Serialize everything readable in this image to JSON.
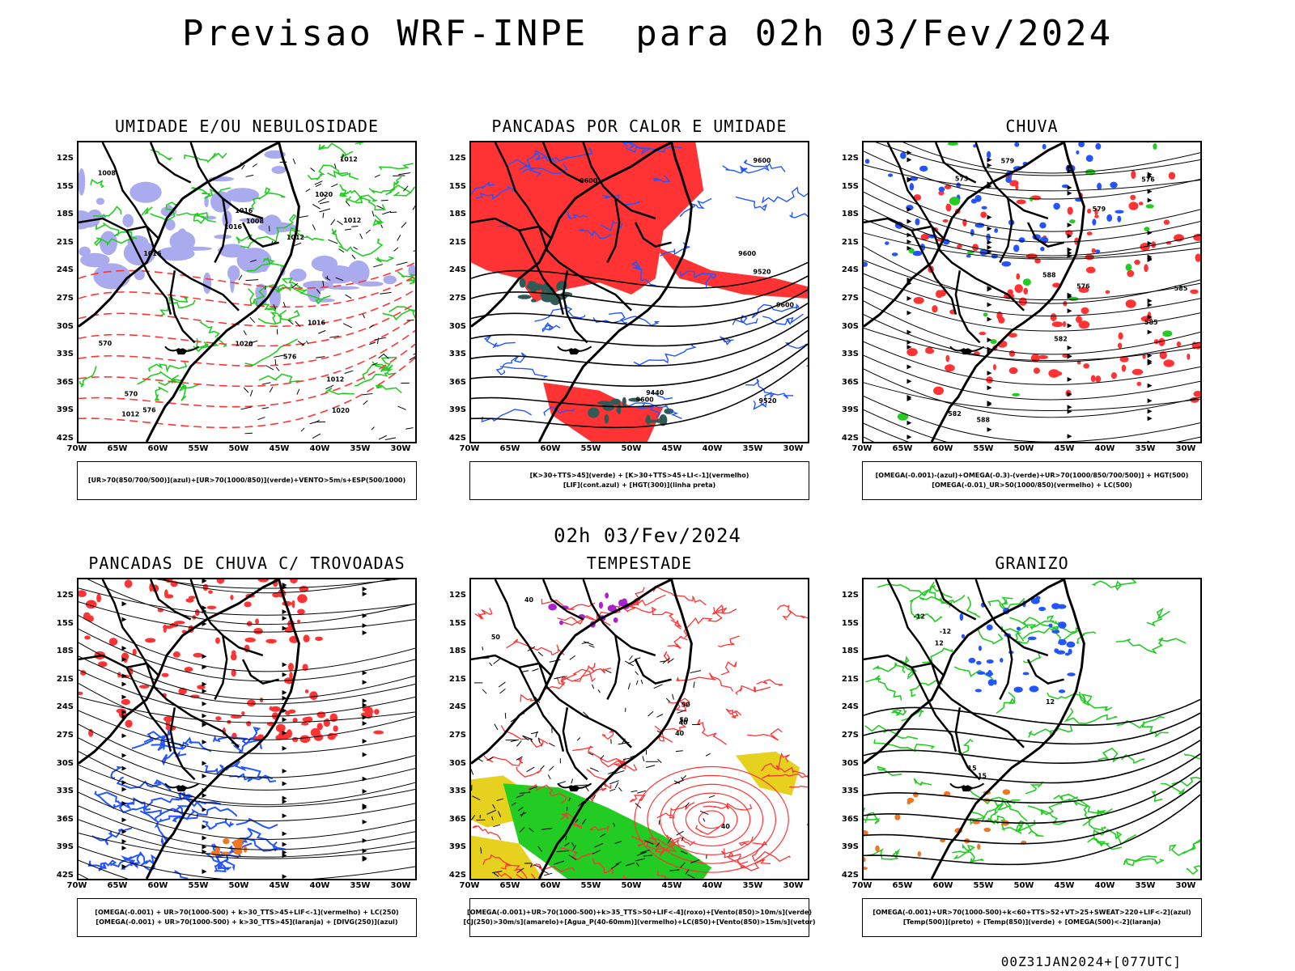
{
  "title": "Previsao WRF-INPE  para 02h 03/Fev/2024",
  "mid_time": "02h 03/Fev/2024",
  "footer": "00Z31JAN2024+[077UTC]",
  "lat_labels": [
    "12S",
    "15S",
    "18S",
    "21S",
    "24S",
    "27S",
    "30S",
    "33S",
    "36S",
    "39S",
    "42S"
  ],
  "lon_labels": [
    "70W",
    "65W",
    "60W",
    "55W",
    "50W",
    "45W",
    "40W",
    "35W",
    "30W"
  ],
  "colors": {
    "red": "#ff3333",
    "green": "#22cc22",
    "blue": "#2255ff",
    "lavender": "#aaaaee",
    "yellow": "#e6d21e",
    "orange": "#ee7722",
    "purple": "#aa22cc",
    "darkteal": "#2f5a55"
  },
  "panels": [
    {
      "title": "UMIDADE E/OU NEBULOSIDADE",
      "legend": [
        "[UR>70(850/700/500)](azul)+[UR>70(1000/850)](verde)+VENTO>5m/s+ESP(500/1000)"
      ],
      "contour_labels": [
        "1012",
        "1012",
        "1012",
        "1016",
        "1016",
        "1020",
        "1012",
        "1016",
        "1008",
        "1012",
        "1020",
        "1020",
        "1016",
        "576",
        "576",
        "570",
        "570",
        "1008"
      ]
    },
    {
      "title": "PANCADAS POR CALOR E UMIDADE",
      "legend": [
        "[K>30+TTS>45](verde) + [K>30+TTS>45+LI<-1](vermelho)",
        "[LIF](cont.azul) + [HGT(300)](linha preta)"
      ],
      "contour_labels": [
        "9600",
        "9600",
        "9600",
        "9600",
        "9600",
        "9520",
        "9520",
        "9440"
      ]
    },
    {
      "title": "CHUVA",
      "legend": [
        "[OMEGA(-0.001)-(azul)+OMEGA(-0.3)-(verde)+UR>70(1000/850/700/500)] + HGT(500)",
        "[OMEGA(-0.01)_UR>50(1000/850)(vermelho) + LC(500)"
      ],
      "contour_labels": [
        "588",
        "585",
        "582",
        "579",
        "576",
        "573",
        "585",
        "582",
        "579",
        "576",
        "588"
      ]
    },
    {
      "title": "PANCADAS DE CHUVA C/ TROVOADAS",
      "legend": [
        "[OMEGA(-0.001) + UR>70(1000-500) + k>30_TTS>45+LIF<-1](vermelho) + LC(250)",
        "[OMEGA(-0.001) + UR>70(1000-500) + k>30_TTS>45](laranja) + [DIVG(250)](azul)"
      ],
      "contour_labels": []
    },
    {
      "title": "TEMPESTADE",
      "legend": [
        "[OMEGA(-0.001)+UR>70(1000-500)+k>35_TTS>50+LIF<-4](roxo)+[Vento(850)>10m/s](verde)",
        "[CJ(250)>30m/s](amarelo)+[Agua_P(40-60mm)](vermelho)+LC(850)+[Vento(850)>15m/s](vetor)"
      ],
      "contour_labels": [
        "50",
        "50",
        "40",
        "40",
        "40",
        "50",
        "40"
      ]
    },
    {
      "title": "GRANIZO",
      "legend": [
        "[OMEGA(-0.001)+UR>70(1000-500)+k<60+TTS>52+VT>25+SWEAT>220+LIF<-2](azul)",
        "[Temp(500)](preto) + [Temp(850)](verde) + [OMEGA(500)<-2](laranja)"
      ],
      "contour_labels": [
        "-12",
        "-12",
        "12",
        "12",
        "15",
        "15"
      ]
    }
  ]
}
